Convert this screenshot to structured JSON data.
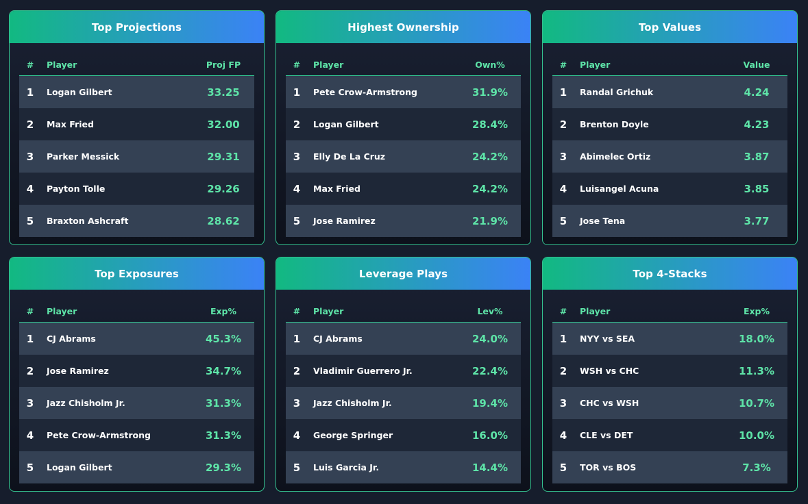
{
  "cards": [
    {
      "title": "Top Projections",
      "headers": {
        "rank": "#",
        "player": "Player",
        "value": "Proj FP"
      },
      "rows": [
        {
          "rank": "1",
          "name": "Logan Gilbert",
          "value": "33.25"
        },
        {
          "rank": "2",
          "name": "Max Fried",
          "value": "32.00"
        },
        {
          "rank": "3",
          "name": "Parker Messick",
          "value": "29.31"
        },
        {
          "rank": "4",
          "name": "Payton Tolle",
          "value": "29.26"
        },
        {
          "rank": "5",
          "name": "Braxton Ashcraft",
          "value": "28.62"
        }
      ]
    },
    {
      "title": "Highest Ownership",
      "headers": {
        "rank": "#",
        "player": "Player",
        "value": "Own%"
      },
      "rows": [
        {
          "rank": "1",
          "name": "Pete Crow-Armstrong",
          "value": "31.9%"
        },
        {
          "rank": "2",
          "name": "Logan Gilbert",
          "value": "28.4%"
        },
        {
          "rank": "3",
          "name": "Elly De La Cruz",
          "value": "24.2%"
        },
        {
          "rank": "4",
          "name": "Max Fried",
          "value": "24.2%"
        },
        {
          "rank": "5",
          "name": "Jose Ramirez",
          "value": "21.9%"
        }
      ]
    },
    {
      "title": "Top Values",
      "headers": {
        "rank": "#",
        "player": "Player",
        "value": "Value"
      },
      "rows": [
        {
          "rank": "1",
          "name": "Randal Grichuk",
          "value": "4.24"
        },
        {
          "rank": "2",
          "name": "Brenton Doyle",
          "value": "4.23"
        },
        {
          "rank": "3",
          "name": "Abimelec Ortiz",
          "value": "3.87"
        },
        {
          "rank": "4",
          "name": "Luisangel Acuna",
          "value": "3.85"
        },
        {
          "rank": "5",
          "name": "Jose Tena",
          "value": "3.77"
        }
      ]
    },
    {
      "title": "Top Exposures",
      "headers": {
        "rank": "#",
        "player": "Player",
        "value": "Exp%"
      },
      "rows": [
        {
          "rank": "1",
          "name": "CJ Abrams",
          "value": "45.3%"
        },
        {
          "rank": "2",
          "name": "Jose Ramirez",
          "value": "34.7%"
        },
        {
          "rank": "3",
          "name": "Jazz Chisholm Jr.",
          "value": "31.3%"
        },
        {
          "rank": "4",
          "name": "Pete Crow-Armstrong",
          "value": "31.3%"
        },
        {
          "rank": "5",
          "name": "Logan Gilbert",
          "value": "29.3%"
        }
      ]
    },
    {
      "title": "Leverage Plays",
      "headers": {
        "rank": "#",
        "player": "Player",
        "value": "Lev%"
      },
      "rows": [
        {
          "rank": "1",
          "name": "CJ Abrams",
          "value": "24.0%"
        },
        {
          "rank": "2",
          "name": "Vladimir Guerrero Jr.",
          "value": "22.4%"
        },
        {
          "rank": "3",
          "name": "Jazz Chisholm Jr.",
          "value": "19.4%"
        },
        {
          "rank": "4",
          "name": "George Springer",
          "value": "16.0%"
        },
        {
          "rank": "5",
          "name": "Luis Garcia Jr.",
          "value": "14.4%"
        }
      ]
    },
    {
      "title": "Top 4-Stacks",
      "headers": {
        "rank": "#",
        "player": "Player",
        "value": "Exp%"
      },
      "rows": [
        {
          "rank": "1",
          "name": "NYY vs SEA",
          "value": "18.0%"
        },
        {
          "rank": "2",
          "name": "WSH vs CHC",
          "value": "11.3%"
        },
        {
          "rank": "3",
          "name": "CHC vs WSH",
          "value": "10.7%"
        },
        {
          "rank": "4",
          "name": "CLE vs DET",
          "value": "10.0%"
        },
        {
          "rank": "5",
          "name": "TOR vs BOS",
          "value": "7.3%"
        }
      ]
    }
  ]
}
